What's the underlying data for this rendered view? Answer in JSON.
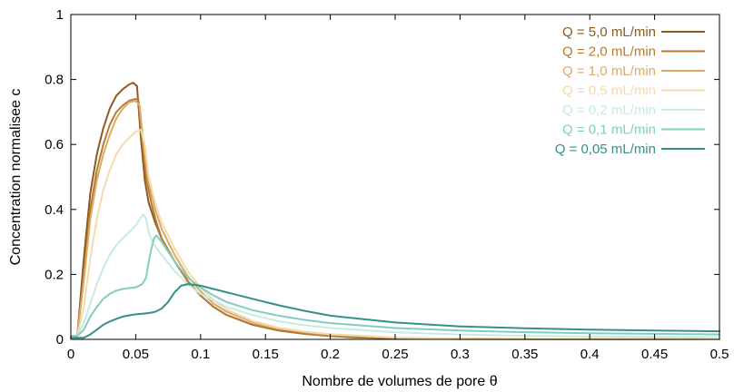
{
  "chart_data": {
    "type": "line",
    "title": "",
    "xlabel": "Nombre de volumes de pore θ",
    "ylabel": "Concentration normalisee c",
    "xlim": [
      0,
      0.5
    ],
    "ylim": [
      0,
      1
    ],
    "xticks": [
      0,
      0.05,
      0.1,
      0.15,
      0.2,
      0.25,
      0.3,
      0.35,
      0.4,
      0.45,
      0.5
    ],
    "xtick_labels": [
      "0",
      "0.05",
      "0.1",
      "0.15",
      "0.2",
      "0.25",
      "0.3",
      "0.35",
      "0.4",
      "0.45",
      "0.5"
    ],
    "yticks": [
      0,
      0.2,
      0.4,
      0.6,
      0.8,
      1
    ],
    "ytick_labels": [
      "0",
      "0.2",
      "0.4",
      "0.6",
      "0.8",
      "1"
    ],
    "grid": false,
    "legend_position": "top-right",
    "series": [
      {
        "name": "Q = 5,0 mL/min",
        "color": "#8c5a1e",
        "x": [
          0,
          0.005,
          0.01,
          0.015,
          0.02,
          0.025,
          0.03,
          0.035,
          0.04,
          0.045,
          0.048,
          0.051,
          0.054,
          0.057,
          0.06,
          0.065,
          0.07,
          0.08,
          0.09,
          0.1,
          0.11,
          0.12,
          0.14,
          0.16,
          0.18,
          0.2,
          0.22,
          0.25,
          0.3,
          0.5
        ],
        "y": [
          0.01,
          0.01,
          0.25,
          0.45,
          0.57,
          0.65,
          0.71,
          0.75,
          0.77,
          0.785,
          0.79,
          0.78,
          0.62,
          0.49,
          0.42,
          0.36,
          0.31,
          0.24,
          0.18,
          0.135,
          0.1,
          0.075,
          0.045,
          0.027,
          0.017,
          0.01,
          0.006,
          0.003,
          0.001,
          0
        ]
      },
      {
        "name": "Q = 2,0 mL/min",
        "color": "#b77a30",
        "x": [
          0,
          0.005,
          0.01,
          0.015,
          0.02,
          0.025,
          0.03,
          0.035,
          0.04,
          0.045,
          0.05,
          0.052,
          0.055,
          0.058,
          0.062,
          0.066,
          0.07,
          0.08,
          0.09,
          0.1,
          0.11,
          0.12,
          0.14,
          0.16,
          0.18,
          0.2,
          0.25,
          0.3,
          0.5
        ],
        "y": [
          0.01,
          0.01,
          0.2,
          0.4,
          0.52,
          0.6,
          0.66,
          0.7,
          0.72,
          0.735,
          0.74,
          0.74,
          0.62,
          0.5,
          0.42,
          0.36,
          0.31,
          0.24,
          0.18,
          0.135,
          0.1,
          0.075,
          0.046,
          0.028,
          0.018,
          0.011,
          0.004,
          0.002,
          0
        ]
      },
      {
        "name": "Q = 1,0 mL/min",
        "color": "#dbab6a",
        "x": [
          0,
          0.005,
          0.01,
          0.015,
          0.02,
          0.025,
          0.03,
          0.035,
          0.04,
          0.045,
          0.05,
          0.053,
          0.056,
          0.06,
          0.065,
          0.07,
          0.08,
          0.09,
          0.1,
          0.11,
          0.12,
          0.14,
          0.16,
          0.18,
          0.2,
          0.25,
          0.3,
          0.5
        ],
        "y": [
          0.01,
          0.01,
          0.18,
          0.37,
          0.49,
          0.57,
          0.63,
          0.68,
          0.71,
          0.73,
          0.735,
          0.72,
          0.6,
          0.48,
          0.4,
          0.34,
          0.26,
          0.195,
          0.148,
          0.11,
          0.085,
          0.053,
          0.034,
          0.022,
          0.014,
          0.005,
          0.002,
          0
        ]
      },
      {
        "name": "Q = 0,5 mL/min",
        "color": "#f2dcab",
        "x": [
          0,
          0.005,
          0.01,
          0.015,
          0.02,
          0.025,
          0.03,
          0.035,
          0.04,
          0.045,
          0.05,
          0.054,
          0.057,
          0.06,
          0.065,
          0.07,
          0.08,
          0.09,
          0.1,
          0.11,
          0.12,
          0.14,
          0.16,
          0.18,
          0.2,
          0.25,
          0.3,
          0.5
        ],
        "y": [
          0.01,
          0.01,
          0.1,
          0.25,
          0.37,
          0.46,
          0.52,
          0.57,
          0.6,
          0.62,
          0.64,
          0.645,
          0.6,
          0.5,
          0.42,
          0.36,
          0.28,
          0.21,
          0.16,
          0.12,
          0.092,
          0.057,
          0.036,
          0.024,
          0.016,
          0.006,
          0.002,
          0
        ]
      },
      {
        "name": "Q = 0,2 mL/min",
        "color": "#c6ebe3",
        "x": [
          0,
          0.005,
          0.01,
          0.015,
          0.02,
          0.025,
          0.03,
          0.035,
          0.04,
          0.045,
          0.05,
          0.053,
          0.056,
          0.058,
          0.06,
          0.063,
          0.066,
          0.07,
          0.08,
          0.09,
          0.1,
          0.11,
          0.12,
          0.14,
          0.16,
          0.18,
          0.2,
          0.25,
          0.3,
          0.35,
          0.4,
          0.5
        ],
        "y": [
          0.01,
          0.01,
          0.05,
          0.11,
          0.17,
          0.22,
          0.26,
          0.29,
          0.31,
          0.33,
          0.35,
          0.37,
          0.385,
          0.37,
          0.33,
          0.3,
          0.28,
          0.26,
          0.21,
          0.17,
          0.14,
          0.12,
          0.1,
          0.075,
          0.056,
          0.044,
          0.035,
          0.022,
          0.015,
          0.011,
          0.009,
          0.007
        ]
      },
      {
        "name": "Q = 0,1 mL/min",
        "color": "#80cdc1",
        "x": [
          0,
          0.005,
          0.01,
          0.015,
          0.02,
          0.025,
          0.03,
          0.035,
          0.04,
          0.045,
          0.05,
          0.055,
          0.058,
          0.061,
          0.064,
          0.066,
          0.07,
          0.075,
          0.08,
          0.09,
          0.1,
          0.11,
          0.12,
          0.14,
          0.16,
          0.18,
          0.2,
          0.25,
          0.3,
          0.35,
          0.4,
          0.45,
          0.5
        ],
        "y": [
          0.01,
          0.01,
          0.03,
          0.07,
          0.1,
          0.125,
          0.14,
          0.15,
          0.155,
          0.158,
          0.16,
          0.17,
          0.19,
          0.26,
          0.31,
          0.32,
          0.3,
          0.27,
          0.24,
          0.19,
          0.16,
          0.135,
          0.115,
          0.09,
          0.073,
          0.06,
          0.05,
          0.035,
          0.027,
          0.022,
          0.019,
          0.017,
          0.015
        ]
      },
      {
        "name": "Q = 0,05 mL/min",
        "color": "#359088",
        "x": [
          0,
          0.01,
          0.015,
          0.02,
          0.025,
          0.03,
          0.035,
          0.04,
          0.045,
          0.05,
          0.055,
          0.06,
          0.065,
          0.07,
          0.075,
          0.08,
          0.085,
          0.09,
          0.095,
          0.1,
          0.11,
          0.12,
          0.14,
          0.16,
          0.18,
          0.2,
          0.25,
          0.3,
          0.35,
          0.4,
          0.45,
          0.5
        ],
        "y": [
          0.005,
          0.005,
          0.015,
          0.03,
          0.045,
          0.055,
          0.063,
          0.07,
          0.074,
          0.077,
          0.079,
          0.081,
          0.085,
          0.095,
          0.115,
          0.145,
          0.165,
          0.17,
          0.168,
          0.165,
          0.155,
          0.145,
          0.125,
          0.105,
          0.088,
          0.073,
          0.052,
          0.04,
          0.034,
          0.03,
          0.027,
          0.025
        ]
      }
    ]
  }
}
